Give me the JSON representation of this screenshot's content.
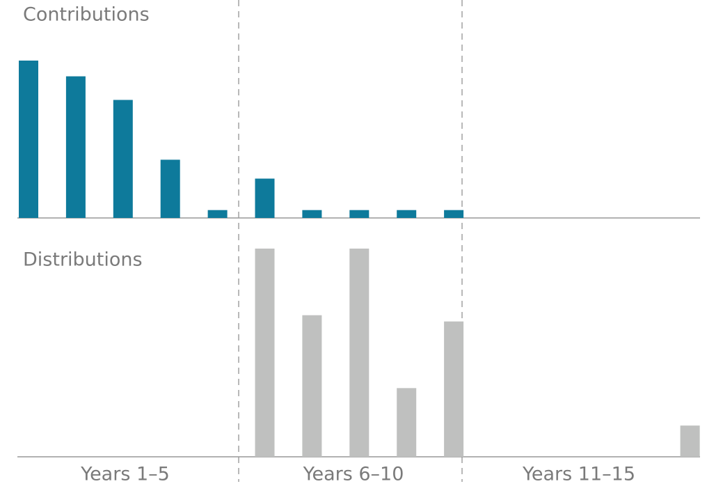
{
  "chart_data": [
    {
      "type": "bar",
      "title": "Contributions",
      "color": "#0e7a9b",
      "values": [
        100,
        90,
        75,
        37,
        5,
        25,
        5,
        5,
        5,
        5,
        0,
        0,
        0,
        0,
        0
      ],
      "ylim": [
        0,
        100
      ]
    },
    {
      "type": "bar",
      "title": "Distributions",
      "color": "#bfc0bf",
      "values": [
        0,
        0,
        0,
        0,
        0,
        100,
        68,
        100,
        33,
        65,
        0,
        0,
        0,
        0,
        15
      ],
      "ylim": [
        0,
        100
      ],
      "group_labels": [
        "Years 1–5",
        "Years 6–10",
        "Years 11–15"
      ]
    }
  ]
}
